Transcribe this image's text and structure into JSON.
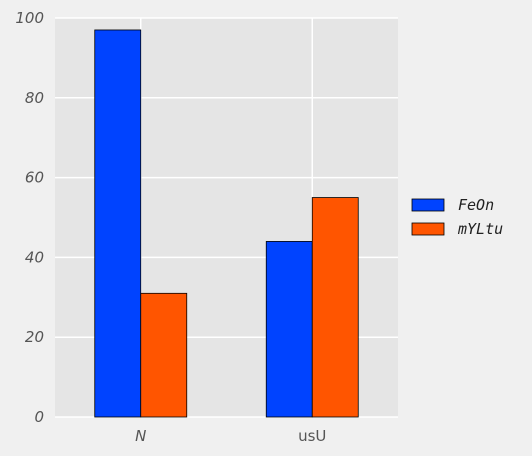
{
  "chart_data": {
    "type": "bar",
    "categories": [
      "N",
      "usU"
    ],
    "categories_italic": [
      true,
      false
    ],
    "series": [
      {
        "name": "FeOn",
        "values": [
          97,
          44
        ],
        "color": "#0043ff"
      },
      {
        "name": "mYLtu",
        "values": [
          31,
          55
        ],
        "color": "#ff5500"
      }
    ],
    "title": "",
    "xlabel": "",
    "ylabel": "",
    "ylim": [
      0,
      100
    ],
    "yticks": [
      0,
      20,
      40,
      60,
      80,
      100
    ],
    "grid": true,
    "legend_position": "right",
    "background_color": "#e5e5e5"
  }
}
